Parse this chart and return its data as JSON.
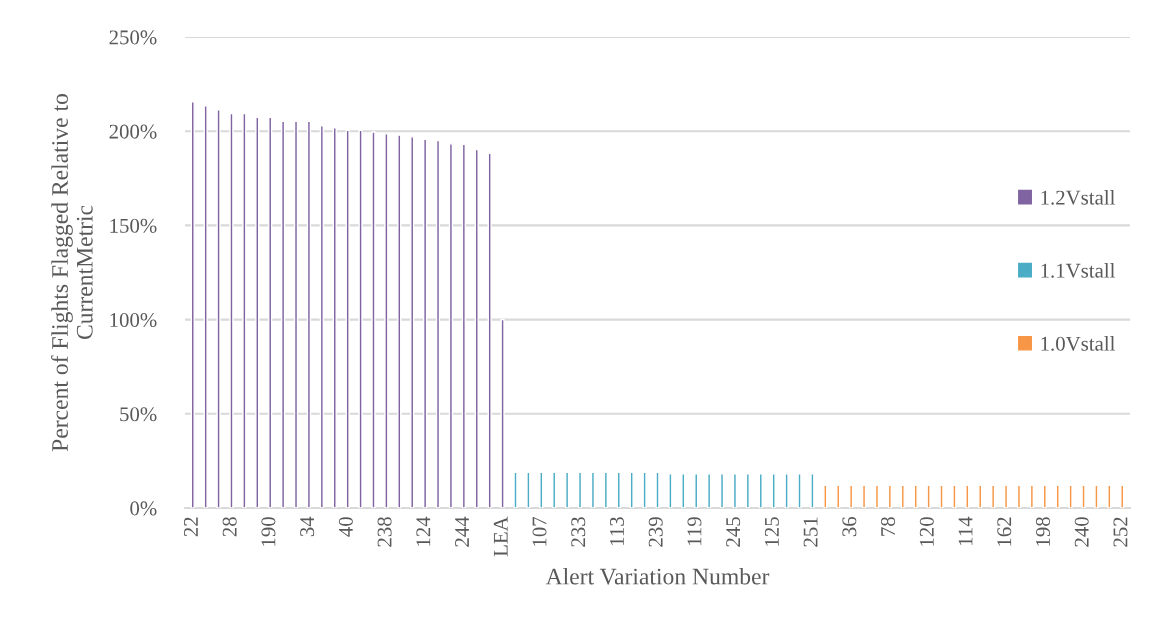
{
  "chart_data": {
    "type": "bar",
    "xlabel": "Alert Variation Number",
    "ylabel": "Percent of Flights Flagged Relative to\nCurrentMetric",
    "categories": [
      "22",
      null,
      null,
      "28",
      null,
      null,
      "190",
      null,
      null,
      "34",
      null,
      null,
      "40",
      null,
      null,
      "238",
      null,
      null,
      "124",
      null,
      null,
      "244",
      null,
      null,
      "LEA",
      null,
      null,
      "107",
      null,
      null,
      "233",
      null,
      null,
      "113",
      null,
      null,
      "239",
      null,
      null,
      "119",
      null,
      null,
      "245",
      null,
      null,
      "125",
      null,
      null,
      "251",
      null,
      null,
      "36",
      null,
      null,
      "78",
      null,
      null,
      "120",
      null,
      null,
      "114",
      null,
      null,
      "162",
      null,
      null,
      "198",
      null,
      null,
      "240",
      null,
      null,
      "252"
    ],
    "series": [
      {
        "name": "1.2Vstall",
        "color": "#8064a2",
        "values": [
          215.6,
          213.5,
          211.3,
          209.4,
          209.4,
          207.4,
          207.4,
          205.3,
          205.3,
          205.3,
          202.8,
          201.8,
          200.5,
          200.5,
          199.6,
          198.6,
          197.9,
          197.0,
          195.7,
          195.0,
          193.3,
          193.1,
          190.2,
          188.3,
          100,
          null,
          null,
          null,
          null,
          null,
          null,
          null,
          null,
          null,
          null,
          null,
          null,
          null,
          null,
          null,
          null,
          null,
          null,
          null,
          null,
          null,
          null,
          null,
          null,
          null,
          null,
          null,
          null,
          null,
          null,
          null,
          null,
          null,
          null,
          null,
          null,
          null,
          null,
          null,
          null,
          null,
          null,
          null,
          null,
          null,
          null,
          null,
          null
        ]
      },
      {
        "name": "1.1Vstall",
        "color": "#4bacc6",
        "values": [
          null,
          null,
          null,
          null,
          null,
          null,
          null,
          null,
          null,
          null,
          null,
          null,
          null,
          null,
          null,
          null,
          null,
          null,
          null,
          null,
          null,
          null,
          null,
          null,
          null,
          18.9,
          18.9,
          18.9,
          18.9,
          18.9,
          18.9,
          18.9,
          18.9,
          18.9,
          18.9,
          18.9,
          18.9,
          18.2,
          18.2,
          18.2,
          18.2,
          18.2,
          18.2,
          18.2,
          18.2,
          18.2,
          18.2,
          18.2,
          18.2,
          null,
          null,
          null,
          null,
          null,
          null,
          null,
          null,
          null,
          null,
          null,
          null,
          null,
          null,
          null,
          null,
          null,
          null,
          null,
          null,
          null,
          null,
          null,
          null
        ]
      },
      {
        "name": "1.0Vstall",
        "color": "#f79646",
        "values": [
          null,
          null,
          null,
          null,
          null,
          null,
          null,
          null,
          null,
          null,
          null,
          null,
          null,
          null,
          null,
          null,
          null,
          null,
          null,
          null,
          null,
          null,
          null,
          null,
          null,
          null,
          null,
          null,
          null,
          null,
          null,
          null,
          null,
          null,
          null,
          null,
          null,
          null,
          null,
          null,
          null,
          null,
          null,
          null,
          null,
          null,
          null,
          null,
          null,
          12,
          12,
          12,
          12,
          12,
          12,
          12,
          12,
          12,
          12,
          12,
          12,
          12,
          12,
          12,
          12,
          12,
          12,
          12,
          12,
          12,
          12,
          12,
          12
        ]
      }
    ],
    "ylim": [
      0,
      250
    ],
    "yticks": [
      {
        "value": 0,
        "label": "0%"
      },
      {
        "value": 50,
        "label": "50%"
      },
      {
        "value": 100,
        "label": "100%"
      },
      {
        "value": 150,
        "label": "150%"
      },
      {
        "value": 200,
        "label": "200%"
      },
      {
        "value": 250,
        "label": "250%"
      }
    ],
    "grid": "y",
    "legend": "right"
  }
}
